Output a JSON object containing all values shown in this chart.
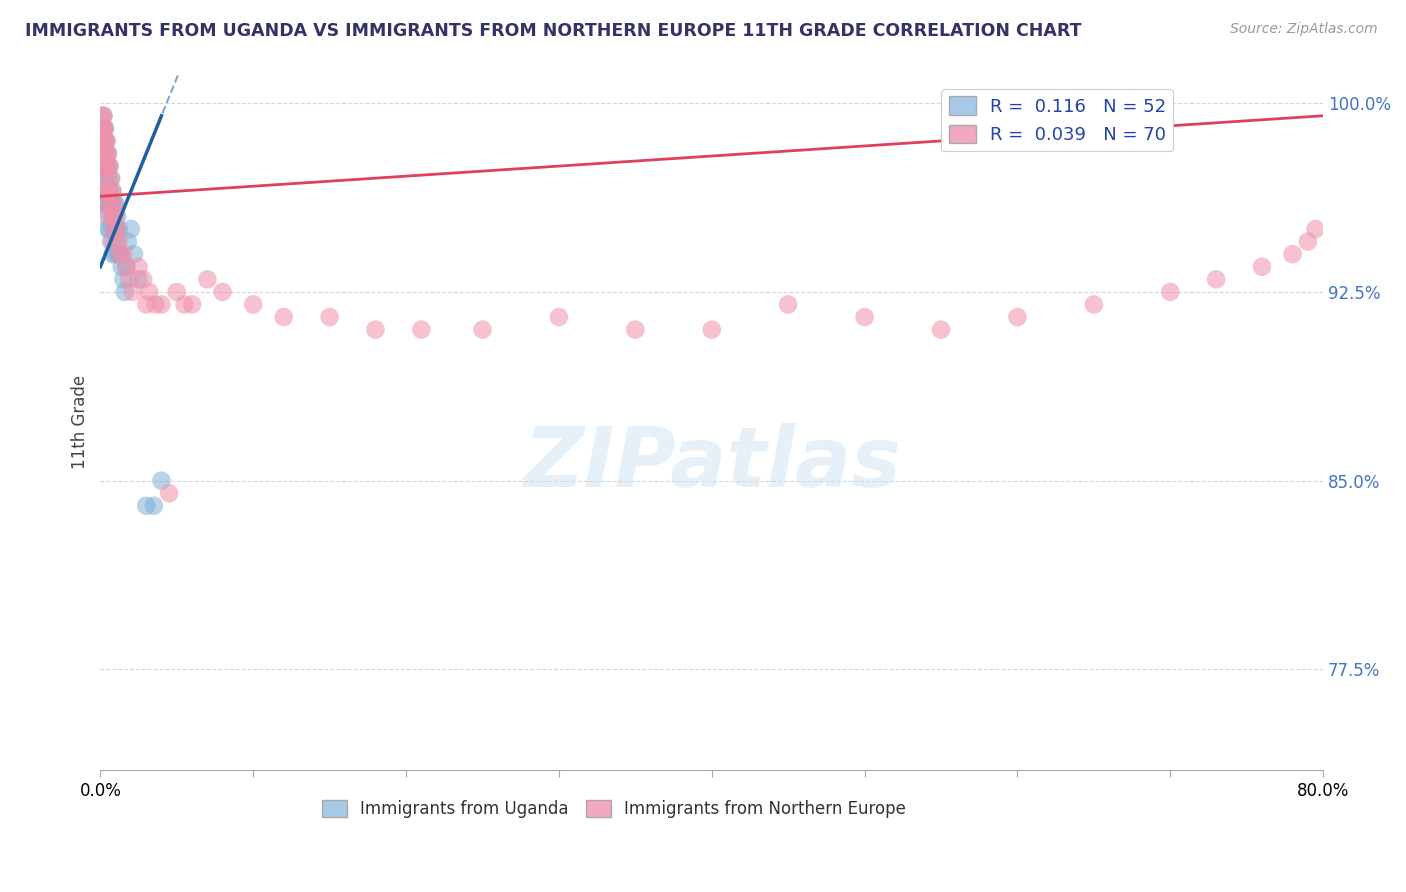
{
  "title": "IMMIGRANTS FROM UGANDA VS IMMIGRANTS FROM NORTHERN EUROPE 11TH GRADE CORRELATION CHART",
  "source": "Source: ZipAtlas.com",
  "ylabel": "11th Grade",
  "xlim": [
    0.0,
    0.8
  ],
  "ylim": [
    0.735,
    1.012
  ],
  "yticks": [
    1.0,
    0.925,
    0.85,
    0.775
  ],
  "ytick_labels": [
    "100.0%",
    "92.5%",
    "85.0%",
    "77.5%"
  ],
  "xticks": [
    0.0,
    0.1,
    0.2,
    0.3,
    0.4,
    0.5,
    0.6,
    0.7,
    0.8
  ],
  "xtick_labels": [
    "0.0%",
    "",
    "",
    "",
    "",
    "",
    "",
    "",
    "80.0%"
  ],
  "legend1_label": "R =  0.116   N = 52",
  "legend2_label": "R =  0.039   N = 70",
  "legend1_color": "#a8c8e8",
  "legend2_color": "#f4a8c0",
  "scatter1_color": "#80b0d8",
  "scatter2_color": "#f090a8",
  "trendline1_color": "#2060a0",
  "trendline2_color": "#e04060",
  "trendline1_dash_color": "#80a8d0",
  "background_color": "#ffffff",
  "watermark_text": "ZIPatlas",
  "R1": 0.116,
  "R2": 0.039,
  "uganda_x": [
    0.001,
    0.001,
    0.001,
    0.001,
    0.001,
    0.002,
    0.002,
    0.002,
    0.002,
    0.002,
    0.003,
    0.003,
    0.003,
    0.003,
    0.004,
    0.004,
    0.004,
    0.004,
    0.005,
    0.005,
    0.005,
    0.005,
    0.006,
    0.006,
    0.006,
    0.007,
    0.007,
    0.007,
    0.008,
    0.008,
    0.008,
    0.009,
    0.009,
    0.01,
    0.01,
    0.01,
    0.011,
    0.011,
    0.012,
    0.012,
    0.013,
    0.014,
    0.015,
    0.016,
    0.017,
    0.018,
    0.02,
    0.022,
    0.025,
    0.03,
    0.035,
    0.04
  ],
  "uganda_y": [
    0.99,
    0.98,
    0.975,
    0.97,
    0.96,
    0.995,
    0.99,
    0.985,
    0.98,
    0.975,
    0.99,
    0.985,
    0.975,
    0.96,
    0.985,
    0.975,
    0.965,
    0.955,
    0.98,
    0.97,
    0.96,
    0.95,
    0.975,
    0.965,
    0.95,
    0.97,
    0.96,
    0.945,
    0.965,
    0.955,
    0.94,
    0.96,
    0.95,
    0.96,
    0.95,
    0.94,
    0.955,
    0.945,
    0.95,
    0.94,
    0.94,
    0.935,
    0.93,
    0.925,
    0.935,
    0.945,
    0.95,
    0.94,
    0.93,
    0.84,
    0.84,
    0.85
  ],
  "northern_x": [
    0.001,
    0.001,
    0.001,
    0.002,
    0.002,
    0.002,
    0.002,
    0.003,
    0.003,
    0.003,
    0.003,
    0.003,
    0.004,
    0.004,
    0.004,
    0.004,
    0.005,
    0.005,
    0.005,
    0.005,
    0.006,
    0.006,
    0.006,
    0.007,
    0.007,
    0.008,
    0.008,
    0.008,
    0.009,
    0.009,
    0.01,
    0.011,
    0.012,
    0.013,
    0.015,
    0.017,
    0.019,
    0.021,
    0.025,
    0.028,
    0.032,
    0.036,
    0.04,
    0.05,
    0.06,
    0.07,
    0.08,
    0.1,
    0.12,
    0.15,
    0.18,
    0.21,
    0.25,
    0.3,
    0.35,
    0.4,
    0.45,
    0.5,
    0.55,
    0.6,
    0.65,
    0.7,
    0.73,
    0.76,
    0.78,
    0.79,
    0.795,
    0.03,
    0.045,
    0.055
  ],
  "northern_y": [
    0.995,
    0.99,
    0.985,
    0.995,
    0.99,
    0.985,
    0.98,
    0.99,
    0.985,
    0.98,
    0.975,
    0.97,
    0.985,
    0.98,
    0.975,
    0.965,
    0.98,
    0.975,
    0.965,
    0.96,
    0.975,
    0.965,
    0.955,
    0.97,
    0.96,
    0.965,
    0.955,
    0.945,
    0.96,
    0.95,
    0.955,
    0.95,
    0.945,
    0.94,
    0.94,
    0.935,
    0.93,
    0.925,
    0.935,
    0.93,
    0.925,
    0.92,
    0.92,
    0.925,
    0.92,
    0.93,
    0.925,
    0.92,
    0.915,
    0.915,
    0.91,
    0.91,
    0.91,
    0.915,
    0.91,
    0.91,
    0.92,
    0.915,
    0.91,
    0.915,
    0.92,
    0.925,
    0.93,
    0.935,
    0.94,
    0.945,
    0.95,
    0.92,
    0.845,
    0.92
  ]
}
